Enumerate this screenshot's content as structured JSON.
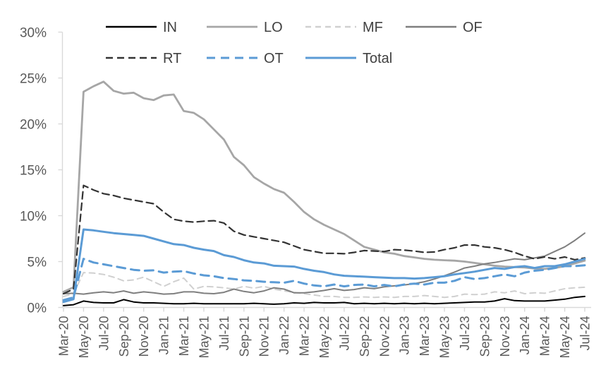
{
  "chart_data": {
    "type": "line",
    "title": "",
    "xlabel": "",
    "ylabel": "",
    "ylim": [
      0,
      30
    ],
    "y_tick_interval": 5,
    "y_tick_labels": [
      "0%",
      "5%",
      "10%",
      "15%",
      "20%",
      "25%",
      "30%"
    ],
    "x_tick_label_step": 2,
    "grid": false,
    "legend_position": "top",
    "legend_rows": [
      [
        "IN",
        "LO",
        "MF",
        "OF"
      ],
      [
        "RT",
        "OT",
        "Total"
      ]
    ],
    "x_categories": [
      "Mar-20",
      "Apr-20",
      "May-20",
      "Jun-20",
      "Jul-20",
      "Aug-20",
      "Sep-20",
      "Oct-20",
      "Nov-20",
      "Dec-20",
      "Jan-21",
      "Feb-21",
      "Mar-21",
      "Apr-21",
      "May-21",
      "Jun-21",
      "Jul-21",
      "Aug-21",
      "Sep-21",
      "Oct-21",
      "Nov-21",
      "Dec-21",
      "Jan-22",
      "Feb-22",
      "Mar-22",
      "Apr-22",
      "May-22",
      "Jun-22",
      "Jul-22",
      "Aug-22",
      "Sep-22",
      "Oct-22",
      "Nov-22",
      "Dec-22",
      "Jan-23",
      "Feb-23",
      "Mar-23",
      "Apr-23",
      "May-23",
      "Jun-23",
      "Jul-23",
      "Aug-23",
      "Sep-23",
      "Oct-23",
      "Nov-23",
      "Dec-23",
      "Jan-24",
      "Feb-24",
      "Mar-24",
      "Apr-24",
      "May-24",
      "Jun-24",
      "Jul-24"
    ],
    "series": [
      {
        "name": "IN",
        "color": "#000000",
        "line_style": "solid",
        "width": 2,
        "values": [
          0.2,
          0.3,
          0.7,
          0.55,
          0.5,
          0.5,
          0.85,
          0.6,
          0.5,
          0.5,
          0.45,
          0.4,
          0.4,
          0.45,
          0.4,
          0.4,
          0.4,
          0.4,
          0.4,
          0.45,
          0.4,
          0.35,
          0.4,
          0.5,
          0.45,
          0.55,
          0.5,
          0.5,
          0.55,
          0.4,
          0.45,
          0.4,
          0.45,
          0.4,
          0.45,
          0.4,
          0.45,
          0.4,
          0.45,
          0.5,
          0.55,
          0.6,
          0.6,
          0.7,
          0.95,
          0.75,
          0.7,
          0.7,
          0.7,
          0.8,
          0.9,
          1.1,
          1.2
        ]
      },
      {
        "name": "LO",
        "color": "#a6a6a6",
        "line_style": "solid",
        "width": 2.8,
        "values": [
          1.7,
          2.2,
          23.5,
          24.1,
          24.6,
          23.6,
          23.3,
          23.4,
          22.8,
          22.6,
          23.1,
          23.2,
          21.4,
          21.2,
          20.5,
          19.4,
          18.3,
          16.4,
          15.5,
          14.2,
          13.5,
          12.9,
          12.5,
          11.5,
          10.4,
          9.6,
          9.0,
          8.5,
          8.0,
          7.3,
          6.6,
          6.3,
          6.0,
          5.85,
          5.6,
          5.45,
          5.3,
          5.2,
          5.15,
          5.1,
          5.0,
          4.85,
          4.7,
          4.55,
          4.45,
          4.4,
          4.35,
          4.25,
          4.2,
          4.3,
          4.5,
          4.8,
          5.1
        ]
      },
      {
        "name": "MF",
        "color": "#d0d0d0",
        "line_style": "dashed",
        "width": 2,
        "dasharray": "8 6",
        "values": [
          1.2,
          1.5,
          3.8,
          3.75,
          3.6,
          3.3,
          2.9,
          3.0,
          3.3,
          2.8,
          2.3,
          2.8,
          3.2,
          2.0,
          2.3,
          2.25,
          2.15,
          2.0,
          2.3,
          2.1,
          2.3,
          2.0,
          1.8,
          1.65,
          1.5,
          1.35,
          1.2,
          1.2,
          1.1,
          1.1,
          1.15,
          1.1,
          1.15,
          1.1,
          1.2,
          1.2,
          1.3,
          1.2,
          1.1,
          1.2,
          1.45,
          1.4,
          1.45,
          1.7,
          1.6,
          1.8,
          1.5,
          1.6,
          1.55,
          1.8,
          2.05,
          2.15,
          2.2
        ]
      },
      {
        "name": "OF",
        "color": "#7f7f7f",
        "line_style": "solid",
        "width": 2,
        "values": [
          1.5,
          1.55,
          1.45,
          1.6,
          1.7,
          1.6,
          1.8,
          1.55,
          1.7,
          1.6,
          1.45,
          1.5,
          1.7,
          1.7,
          1.55,
          1.5,
          1.65,
          2.0,
          1.75,
          1.6,
          1.8,
          2.15,
          2.0,
          1.6,
          1.6,
          1.7,
          1.85,
          2.05,
          1.85,
          1.95,
          2.15,
          2.05,
          2.25,
          2.35,
          2.45,
          2.6,
          2.8,
          3.1,
          3.45,
          3.85,
          4.3,
          4.5,
          4.75,
          4.9,
          5.1,
          5.3,
          5.2,
          5.4,
          5.6,
          6.1,
          6.6,
          7.3,
          8.1
        ]
      },
      {
        "name": "RT",
        "color": "#333333",
        "line_style": "dashed",
        "width": 2.2,
        "dasharray": "10 6",
        "values": [
          1.5,
          2.0,
          13.3,
          12.8,
          12.4,
          12.2,
          11.9,
          11.7,
          11.5,
          11.3,
          10.4,
          9.6,
          9.4,
          9.3,
          9.4,
          9.45,
          9.2,
          8.3,
          7.9,
          7.7,
          7.5,
          7.3,
          7.1,
          6.7,
          6.3,
          6.1,
          5.9,
          5.9,
          5.85,
          6.0,
          6.2,
          6.15,
          6.1,
          6.3,
          6.25,
          6.15,
          6.0,
          6.05,
          6.3,
          6.5,
          6.8,
          6.8,
          6.6,
          6.5,
          6.3,
          6.0,
          5.6,
          5.3,
          5.5,
          5.3,
          5.5,
          5.2,
          5.4
        ]
      },
      {
        "name": "OT",
        "color": "#5b9bd5",
        "line_style": "dashed",
        "width": 3,
        "dasharray": "12 8",
        "values": [
          0.8,
          1.1,
          5.3,
          4.9,
          4.7,
          4.5,
          4.3,
          4.1,
          4.0,
          4.05,
          3.8,
          3.9,
          3.95,
          3.7,
          3.5,
          3.4,
          3.2,
          3.1,
          2.95,
          2.9,
          2.8,
          2.75,
          2.7,
          2.9,
          2.6,
          2.4,
          2.3,
          2.5,
          2.3,
          2.45,
          2.5,
          2.3,
          2.45,
          2.3,
          2.5,
          2.6,
          2.5,
          2.7,
          2.7,
          2.9,
          3.3,
          3.1,
          3.2,
          3.4,
          3.6,
          3.4,
          3.8,
          4.0,
          4.1,
          4.3,
          4.5,
          4.5,
          4.6
        ]
      },
      {
        "name": "Total",
        "color": "#5b9bd5",
        "line_style": "solid",
        "width": 3,
        "values": [
          0.6,
          0.9,
          8.5,
          8.4,
          8.25,
          8.1,
          8.0,
          7.9,
          7.8,
          7.5,
          7.2,
          6.9,
          6.8,
          6.5,
          6.3,
          6.15,
          5.7,
          5.5,
          5.15,
          4.9,
          4.8,
          4.55,
          4.5,
          4.45,
          4.2,
          4.0,
          3.85,
          3.6,
          3.45,
          3.4,
          3.35,
          3.3,
          3.25,
          3.2,
          3.2,
          3.15,
          3.2,
          3.3,
          3.4,
          3.6,
          3.75,
          3.9,
          4.1,
          4.3,
          4.2,
          4.4,
          4.5,
          4.3,
          4.5,
          4.5,
          4.7,
          5.0,
          5.3
        ]
      }
    ]
  },
  "style": {
    "axis_line_color": "#d9d9d9",
    "axis_text_color": "#595959",
    "legend_text_color": "#404040",
    "background_color": "#ffffff"
  }
}
